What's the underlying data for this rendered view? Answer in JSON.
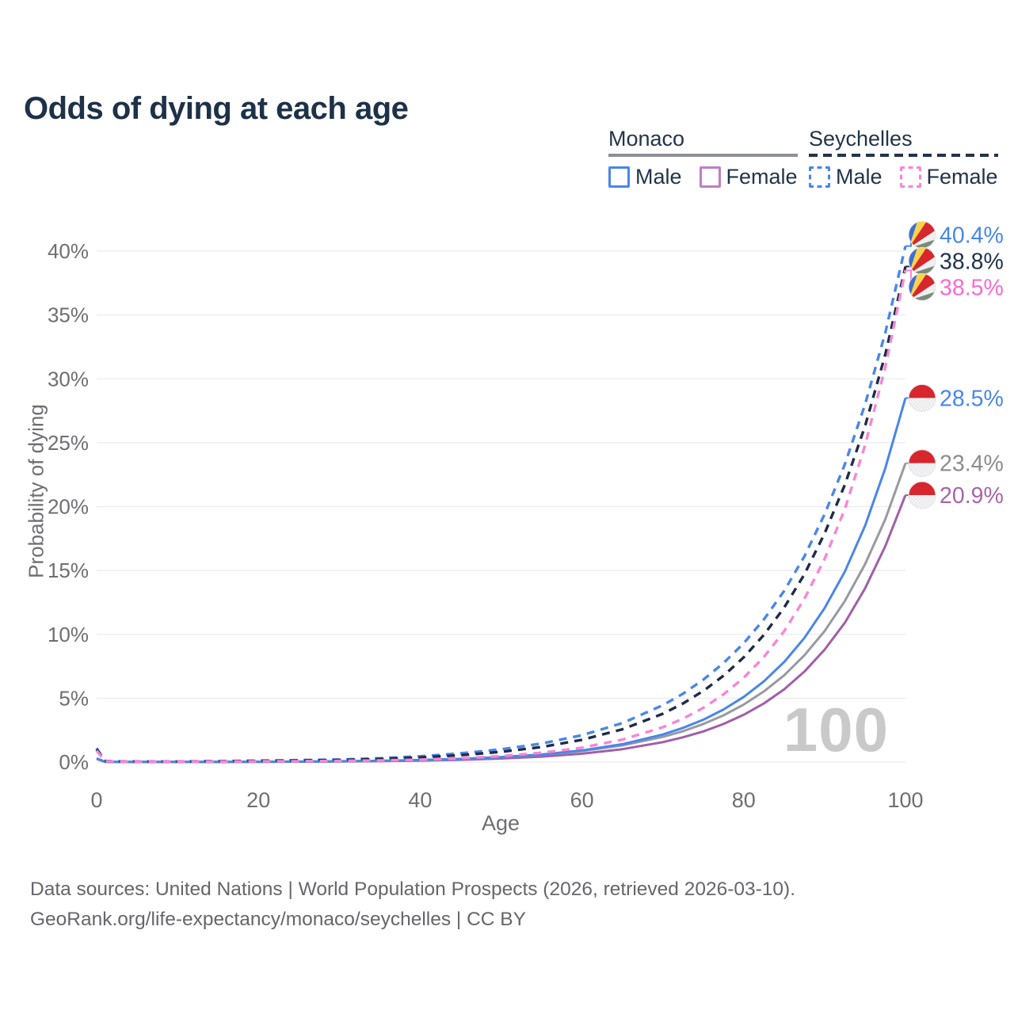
{
  "header": {
    "title": "Odds of dying at each age"
  },
  "legend": {
    "groups": [
      {
        "name": "Monaco",
        "line_color": "#8f9096",
        "line_style": "solid",
        "items": [
          {
            "label": "Male",
            "color": "#4a86e8",
            "style": "solid"
          },
          {
            "label": "Female",
            "color": "#bf7ec6",
            "style": "solid"
          }
        ]
      },
      {
        "name": "Seychelles",
        "line_color": "#223449",
        "line_style": "dashed",
        "items": [
          {
            "label": "Male",
            "color": "#4a86e8",
            "style": "dashed"
          },
          {
            "label": "Female",
            "color": "#f985d5",
            "style": "dashed"
          }
        ]
      }
    ]
  },
  "chart_data": {
    "type": "line",
    "title": "Odds of dying at each age",
    "xlabel": "Age",
    "ylabel": "Probability of dying",
    "xlim": [
      0,
      100
    ],
    "ylim": [
      0,
      42
    ],
    "xticks": [
      0,
      20,
      40,
      60,
      80,
      100
    ],
    "yticks": [
      0,
      5,
      10,
      15,
      20,
      25,
      30,
      35,
      40
    ],
    "ytick_suffix": "%",
    "grid": "horizontal",
    "legend_position": "top-right",
    "age_watermark": "100",
    "x": [
      0,
      1,
      2,
      5,
      10,
      15,
      20,
      25,
      30,
      35,
      40,
      45,
      50,
      55,
      60,
      65,
      70,
      72.5,
      75,
      77.5,
      80,
      82.5,
      85,
      87.5,
      90,
      92.5,
      95,
      97.5,
      100
    ],
    "series": [
      {
        "name": "Monaco Male",
        "country": "Monaco",
        "sex": "Male",
        "color": "#4a86e8",
        "dash": false,
        "end_label": "28.5%",
        "label_color": "#4a86e8",
        "values": [
          0.3,
          0.03,
          0.02,
          0.015,
          0.015,
          0.02,
          0.03,
          0.04,
          0.06,
          0.1,
          0.16,
          0.25,
          0.39,
          0.59,
          0.91,
          1.4,
          2.16,
          2.68,
          3.32,
          4.12,
          5.1,
          6.32,
          7.84,
          9.72,
          12.05,
          14.9,
          18.5,
          23.0,
          28.5
        ]
      },
      {
        "name": "Monaco Both sexes",
        "country": "Monaco",
        "sex": "Both",
        "color": "#999aa0",
        "dash": false,
        "end_label": "23.4%",
        "label_color": "#8c8c91",
        "values": [
          0.27,
          0.03,
          0.02,
          0.013,
          0.013,
          0.018,
          0.027,
          0.04,
          0.06,
          0.09,
          0.15,
          0.24,
          0.38,
          0.57,
          0.87,
          1.31,
          1.97,
          2.42,
          2.98,
          3.66,
          4.5,
          5.53,
          6.8,
          8.36,
          10.25,
          12.6,
          15.5,
          19.0,
          23.4
        ]
      },
      {
        "name": "Monaco Female",
        "country": "Monaco",
        "sex": "Female",
        "color": "#a05fa8",
        "dash": false,
        "end_label": "20.9%",
        "label_color": "#a765a9",
        "values": [
          0.25,
          0.02,
          0.015,
          0.01,
          0.01,
          0.015,
          0.02,
          0.03,
          0.05,
          0.07,
          0.12,
          0.18,
          0.28,
          0.43,
          0.66,
          1.01,
          1.56,
          1.94,
          2.4,
          2.98,
          3.7,
          4.59,
          5.7,
          7.08,
          8.8,
          10.9,
          13.6,
          16.9,
          20.9
        ]
      },
      {
        "name": "Seychelles Male",
        "country": "Seychelles",
        "sex": "Male",
        "color": "#4a86e8",
        "dash": true,
        "end_label": "40.4%",
        "label_color": "#4a86e8",
        "values": [
          1.1,
          0.1,
          0.06,
          0.05,
          0.05,
          0.07,
          0.12,
          0.15,
          0.2,
          0.3,
          0.45,
          0.68,
          1.0,
          1.45,
          2.1,
          3.05,
          4.45,
          5.35,
          6.45,
          7.75,
          9.3,
          11.17,
          13.4,
          16.1,
          19.4,
          23.3,
          28.0,
          33.6,
          40.4
        ]
      },
      {
        "name": "Seychelles Both sexes",
        "country": "Seychelles",
        "sex": "Both",
        "color": "#1e2c48",
        "dash": true,
        "end_label": "38.8%",
        "label_color": "#223449",
        "values": [
          1.0,
          0.09,
          0.05,
          0.04,
          0.04,
          0.06,
          0.09,
          0.12,
          0.16,
          0.24,
          0.36,
          0.54,
          0.8,
          1.18,
          1.74,
          2.57,
          3.78,
          4.59,
          5.57,
          6.76,
          8.2,
          9.96,
          12.1,
          14.7,
          17.9,
          21.7,
          26.3,
          31.9,
          38.8
        ]
      },
      {
        "name": "Seychelles Female",
        "country": "Seychelles",
        "sex": "Female",
        "color": "#f985d5",
        "dash": true,
        "end_label": "38.5%",
        "label_color": "#f96ad2",
        "values": [
          0.9,
          0.08,
          0.05,
          0.03,
          0.03,
          0.04,
          0.06,
          0.07,
          0.09,
          0.13,
          0.19,
          0.3,
          0.47,
          0.73,
          1.13,
          1.76,
          2.73,
          3.4,
          4.25,
          5.3,
          6.6,
          8.23,
          10.25,
          12.78,
          15.9,
          19.8,
          24.8,
          30.9,
          38.5
        ]
      }
    ],
    "flag_colors": {
      "monaco": {
        "red": "#d7262d",
        "white": "#f5f5f6"
      },
      "seychelles": {
        "blue": "#3e6fca",
        "yellow": "#fcd24b",
        "red": "#d7262d",
        "white": "#f5f5f6",
        "green": "#7a8b7a"
      }
    },
    "axis_color": "#6e6e73",
    "grid_color": "#ebebeb"
  },
  "footer": {
    "line1": "Data sources: United Nations | World Population Prospects (2026, retrieved 2026-03-10).",
    "line2": "GeoRank.org/life-expectancy/monaco/seychelles | CC BY"
  }
}
